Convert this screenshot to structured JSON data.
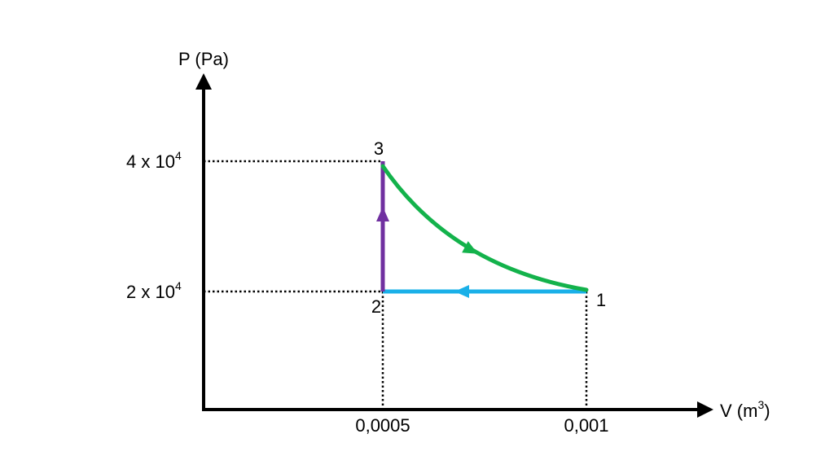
{
  "chart_data": {
    "type": "line",
    "ylabel": "P (Pa)",
    "xlabel_base": "V (m",
    "xlabel_sup": "3",
    "xlabel_close": ")",
    "x_ticks": [
      {
        "value": 0.0005,
        "label": "0,0005"
      },
      {
        "value": 0.001,
        "label": "0,001"
      }
    ],
    "y_ticks": [
      {
        "value": 20000,
        "base": "2 x 10",
        "exp": "4"
      },
      {
        "value": 40000,
        "base": "4 x 10",
        "exp": "4"
      }
    ],
    "points": [
      {
        "name": "1",
        "x": 0.001,
        "y": 20000
      },
      {
        "name": "2",
        "x": 0.0005,
        "y": 20000
      },
      {
        "name": "3",
        "x": 0.0005,
        "y": 40000
      }
    ],
    "processes": [
      {
        "from": "1",
        "to": "2",
        "kind": "isobaric",
        "color": "#1ab0e8"
      },
      {
        "from": "2",
        "to": "3",
        "kind": "isochoric",
        "color": "#7030a0"
      },
      {
        "from": "3",
        "to": "1",
        "kind": "curve",
        "color": "#13b24b"
      }
    ],
    "grid": false
  }
}
